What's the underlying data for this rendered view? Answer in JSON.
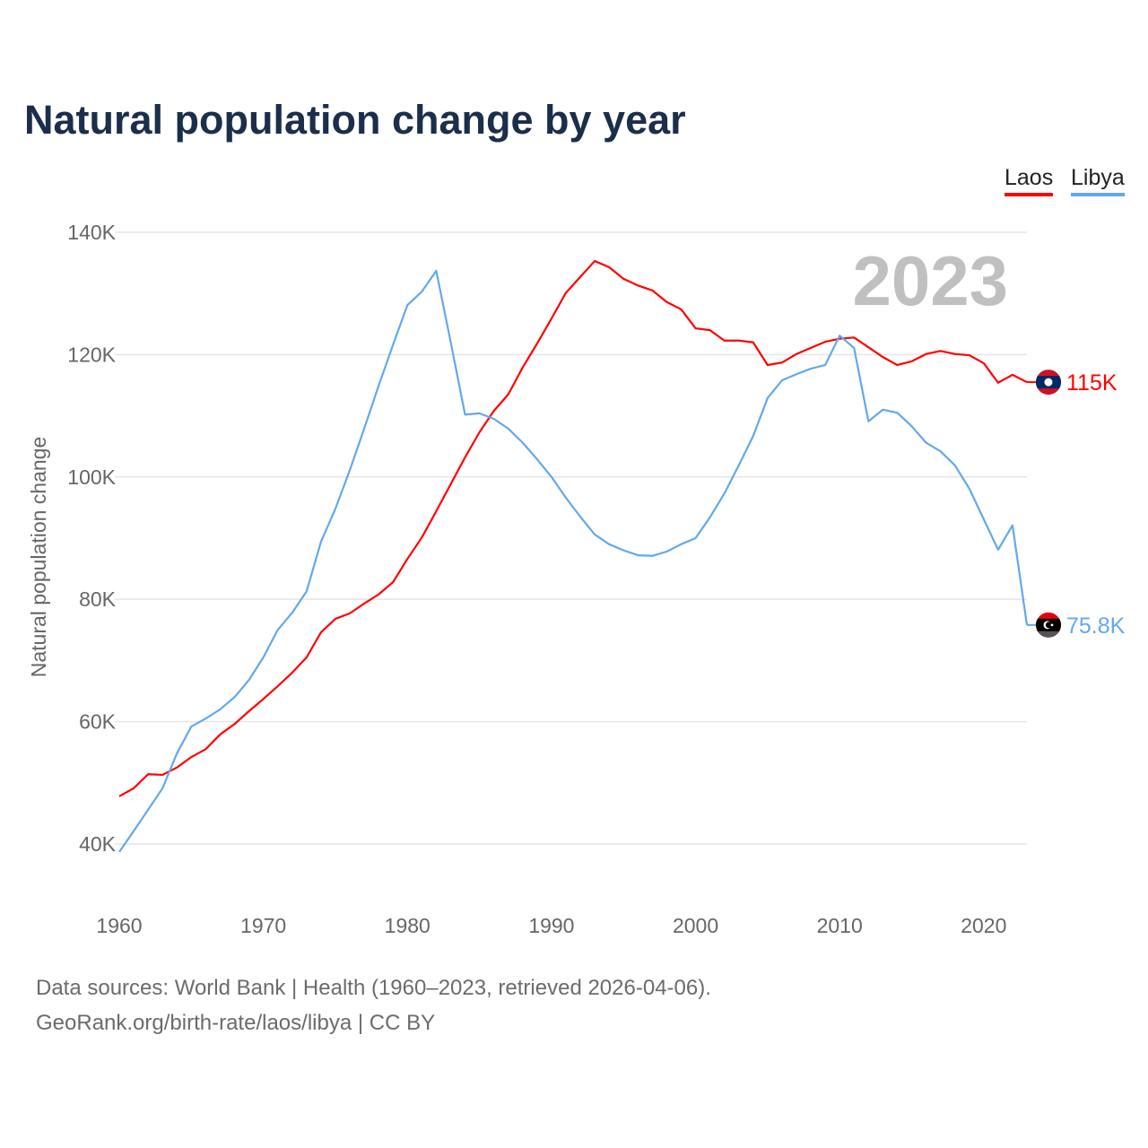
{
  "title": "Natural population change by year",
  "legend": {
    "laos": "Laos",
    "libya": "Libya"
  },
  "footer": {
    "sources": "Data sources: World Bank | Health (1960–2023, retrieved 2026-04-06).",
    "credit": "GeoRank.org/birth-rate/laos/libya | CC BY"
  },
  "chart_data": {
    "type": "line",
    "title": "Natural population change by year",
    "xlabel": "",
    "ylabel": "Natural population change",
    "year_label": "2023",
    "xlim": [
      1960,
      2023
    ],
    "ylim": [
      40000,
      140000
    ],
    "x_ticks": [
      "1960",
      "1970",
      "1980",
      "1990",
      "2000",
      "2010",
      "2020"
    ],
    "y_ticks": [
      "40K",
      "60K",
      "80K",
      "100K",
      "120K",
      "140K"
    ],
    "grid": true,
    "legend_position": "top-right",
    "x": [
      1960,
      1961,
      1962,
      1963,
      1964,
      1965,
      1966,
      1967,
      1968,
      1969,
      1970,
      1971,
      1972,
      1973,
      1974,
      1975,
      1976,
      1977,
      1978,
      1979,
      1980,
      1981,
      1982,
      1983,
      1984,
      1985,
      1986,
      1987,
      1988,
      1989,
      1990,
      1991,
      1992,
      1993,
      1994,
      1995,
      1996,
      1997,
      1998,
      1999,
      2000,
      2001,
      2002,
      2003,
      2004,
      2005,
      2006,
      2007,
      2008,
      2009,
      2010,
      2011,
      2012,
      2013,
      2014,
      2015,
      2016,
      2017,
      2018,
      2019,
      2020,
      2021,
      2022,
      2023
    ],
    "series": [
      {
        "name": "Laos",
        "color": "#ff0000",
        "end_label": "115K",
        "flag": "laos-flag",
        "values": [
          47800,
          49100,
          51400,
          51300,
          52500,
          54200,
          55500,
          57900,
          59600,
          61700,
          63700,
          65800,
          68000,
          70500,
          74600,
          76800,
          77700,
          79300,
          80800,
          82800,
          86600,
          90100,
          94400,
          98800,
          103200,
          107300,
          110800,
          113500,
          117900,
          121800,
          125900,
          130100,
          132700,
          135300,
          134300,
          132400,
          131300,
          130500,
          128600,
          127400,
          124300,
          124000,
          122300,
          122300,
          122000,
          118300,
          118700,
          120100,
          121100,
          122100,
          122600,
          122800,
          121200,
          119600,
          118300,
          118900,
          120100,
          120600,
          120100,
          119900,
          118600,
          115400,
          116700,
          115500
        ]
      },
      {
        "name": "Libya",
        "color": "#64a8ea",
        "end_label": "75.8K",
        "flag": "libya-flag",
        "values": [
          38700,
          42100,
          45600,
          49100,
          54800,
          59200,
          60500,
          62000,
          64000,
          66800,
          70500,
          75000,
          77800,
          81300,
          89400,
          94800,
          101100,
          107900,
          114900,
          121600,
          128100,
          130300,
          133700,
          122100,
          110200,
          110400,
          109500,
          107900,
          105600,
          102900,
          100000,
          96600,
          93500,
          90600,
          89000,
          88000,
          87200,
          87100,
          87800,
          89000,
          90000,
          93400,
          97300,
          101900,
          106700,
          112900,
          115800,
          116800,
          117700,
          118300,
          123100,
          121100,
          109100,
          111000,
          110500,
          108300,
          105600,
          104200,
          101900,
          98100,
          93100,
          88100,
          92100,
          75800
        ]
      }
    ]
  }
}
